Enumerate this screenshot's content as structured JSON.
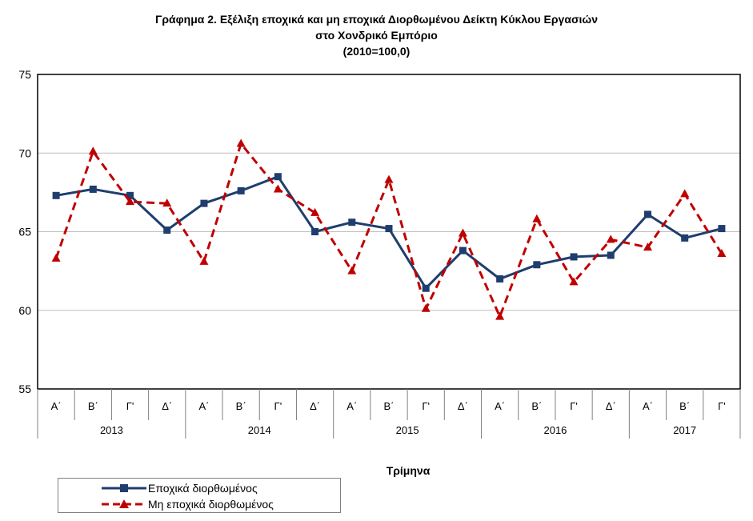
{
  "title": {
    "line1": "Γράφημα 2. Εξέλιξη εποχικά και μη εποχικά Διορθωμένου Δείκτη Κύκλου Εργασιών",
    "line2": "στο Χονδρικό Εμπόριο",
    "line3": "(2010=100,0)"
  },
  "colors": {
    "seasonal": "#1f3e6e",
    "nonseasonal": "#c00000"
  },
  "chart_data": {
    "type": "line",
    "xlabel": "Τρίμηνα",
    "ylabel": "",
    "ylim": [
      55,
      75
    ],
    "yticks": [
      55,
      60,
      65,
      70,
      75
    ],
    "grid": true,
    "legend_position": "bottom-left",
    "quarters": [
      "Α΄",
      "Β΄",
      "Γ'",
      "Δ΄",
      "Α΄",
      "Β΄",
      "Γ'",
      "Δ΄",
      "Α΄",
      "Β΄",
      "Γ'",
      "Δ΄",
      "Α΄",
      "Β΄",
      "Γ'",
      "Δ΄",
      "Α΄",
      "Β΄",
      "Γ'"
    ],
    "years": [
      {
        "label": "2013",
        "span": 4
      },
      {
        "label": "2014",
        "span": 4
      },
      {
        "label": "2015",
        "span": 4
      },
      {
        "label": "2016",
        "span": 4
      },
      {
        "label": "2017",
        "span": 3
      }
    ],
    "series": [
      {
        "name": "Εποχικά διορθωμένος",
        "values": [
          67.3,
          67.7,
          67.3,
          65.1,
          66.8,
          67.6,
          68.5,
          65.0,
          65.6,
          65.2,
          61.4,
          63.8,
          62.0,
          62.9,
          63.4,
          63.5,
          66.1,
          64.6,
          65.2
        ]
      },
      {
        "name": "Μη εποχικά διορθωμένος",
        "values": [
          63.3,
          70.1,
          66.9,
          66.8,
          63.1,
          70.6,
          67.7,
          66.2,
          62.5,
          68.3,
          60.1,
          64.9,
          59.6,
          65.8,
          61.8,
          64.5,
          64.0,
          67.4,
          63.6
        ]
      }
    ]
  }
}
